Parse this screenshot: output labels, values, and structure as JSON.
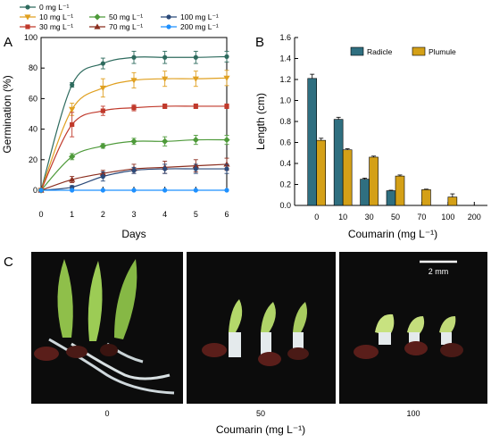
{
  "panels": {
    "a": "A",
    "b": "B",
    "c": "C"
  },
  "chart_data": [
    {
      "type": "line",
      "xlabel": "Days",
      "ylabel": "Germination (%)",
      "xlim": [
        0,
        6
      ],
      "ylim": [
        0,
        100
      ],
      "xticks": [
        "0",
        "1",
        "2",
        "3",
        "4",
        "5",
        "6"
      ],
      "yticks": [
        "0",
        "20",
        "40",
        "60",
        "80",
        "100"
      ],
      "x": [
        0,
        1,
        2,
        3,
        4,
        5,
        6
      ],
      "grid": false,
      "legend_position": "top",
      "series": [
        {
          "name": "0 mg L⁻¹",
          "color": "#2e6b5e",
          "marker": "circle",
          "values": [
            0,
            69,
            83,
            87,
            87,
            87,
            87.5
          ],
          "errors": [
            0,
            1.5,
            3.5,
            4,
            4,
            4,
            3.5
          ]
        },
        {
          "name": "10 mg L⁻¹",
          "color": "#e0a020",
          "marker": "triangle-down",
          "values": [
            0,
            53,
            67,
            72,
            73,
            73,
            73.5
          ],
          "errors": [
            0,
            4,
            6,
            5,
            5,
            5,
            5
          ]
        },
        {
          "name": "30 mg L⁻¹",
          "color": "#c0392b",
          "marker": "square",
          "values": [
            0,
            43,
            52,
            54,
            55,
            55,
            55
          ],
          "errors": [
            0,
            8,
            3,
            2,
            1.5,
            1.5,
            1.5
          ]
        },
        {
          "name": "50 mg L⁻¹",
          "color": "#4e9a3a",
          "marker": "diamond",
          "values": [
            0,
            22,
            29,
            32,
            32,
            33,
            33
          ],
          "errors": [
            0,
            2,
            1.5,
            2,
            3,
            3,
            3
          ]
        },
        {
          "name": "70 mg L⁻¹",
          "color": "#8b2e1f",
          "marker": "triangle",
          "values": [
            0,
            7,
            11,
            14,
            15,
            16,
            17
          ],
          "errors": [
            0,
            2,
            2,
            3,
            4,
            4,
            4
          ]
        },
        {
          "name": "100 mg L⁻¹",
          "color": "#2b4a7a",
          "marker": "circle",
          "values": [
            0,
            2,
            9,
            13,
            14,
            14,
            14
          ],
          "errors": [
            0,
            1,
            3,
            2,
            3,
            3,
            3
          ]
        },
        {
          "name": "200 mg L⁻¹",
          "color": "#1e90ff",
          "marker": "circle",
          "values": [
            0,
            0,
            0,
            0,
            0,
            0,
            0
          ],
          "errors": [
            0,
            0,
            0,
            0,
            0,
            0,
            0
          ]
        }
      ]
    },
    {
      "type": "bar",
      "xlabel": "Coumarin (mg L⁻¹)",
      "ylabel": "Length (cm)",
      "ylim": [
        0,
        1.6
      ],
      "yticks": [
        "0.0",
        "0.2",
        "0.4",
        "0.6",
        "0.8",
        "1.0",
        "1.2",
        "1.4",
        "1.6"
      ],
      "categories": [
        "0",
        "10",
        "30",
        "50",
        "70",
        "100",
        "200"
      ],
      "legend_position": "top-right",
      "series": [
        {
          "name": "Radicle",
          "color": "#2f6f80",
          "values": [
            1.21,
            0.82,
            0.25,
            0.14,
            0,
            0,
            0
          ],
          "errors": [
            0.04,
            0.02,
            0.01,
            0.005,
            0,
            0,
            0
          ]
        },
        {
          "name": "Plumule",
          "color": "#d4a017",
          "values": [
            0.62,
            0.53,
            0.46,
            0.28,
            0.15,
            0.08,
            0
          ],
          "errors": [
            0.02,
            0.01,
            0.01,
            0.01,
            0.005,
            0.03,
            0
          ]
        }
      ]
    }
  ],
  "photos": {
    "xlabel": "Coumarin (mg L⁻¹)",
    "labels": [
      "0",
      "50",
      "100"
    ],
    "scale_bar": "2 mm"
  }
}
